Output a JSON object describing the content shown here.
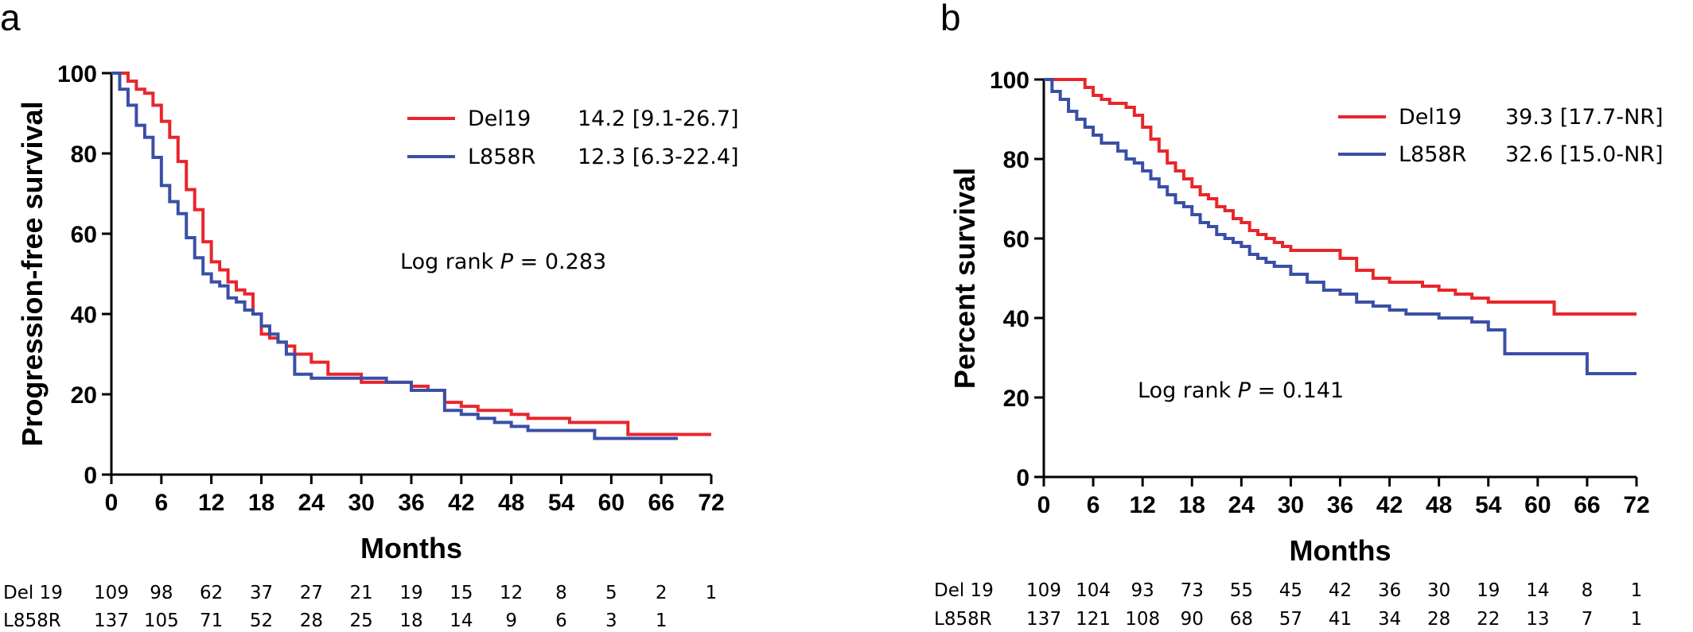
{
  "chart_data": [
    {
      "type": "line",
      "panel": "a",
      "ylabel": "Progression-free survival",
      "xlabel": "Months",
      "xlim": [
        0,
        72
      ],
      "ylim": [
        0,
        100
      ],
      "xticks": [
        "0",
        "6",
        "12",
        "18",
        "24",
        "30",
        "36",
        "42",
        "48",
        "54",
        "60",
        "66",
        "72"
      ],
      "yticks": [
        "0",
        "20",
        "40",
        "60",
        "80",
        "100"
      ],
      "grid": false,
      "legend_position": "top-right",
      "colors": {
        "Del19": "#e8262b",
        "L858R": "#3a4fa6"
      },
      "legend": [
        {
          "name": "Del19",
          "value": "14.2 [9.1-26.7]"
        },
        {
          "name": "L858R",
          "value": "12.3 [6.3-22.4]"
        }
      ],
      "annotation": {
        "prefix": "Log rank ",
        "italic": "P",
        "suffix": " = 0.283"
      },
      "series": [
        {
          "name": "Del19",
          "x": [
            0,
            1,
            2,
            3,
            4,
            5,
            6,
            7,
            8,
            9,
            10,
            11,
            12,
            13,
            14,
            15,
            16,
            17,
            18,
            19,
            20,
            21,
            22,
            24,
            26,
            30,
            33,
            36,
            38,
            40,
            42,
            44,
            46,
            48,
            50,
            55,
            58,
            60,
            62,
            66,
            72
          ],
          "y": [
            100,
            100,
            98,
            96,
            95,
            92,
            88,
            84,
            78,
            71,
            66,
            58,
            53,
            51,
            48,
            46,
            45,
            40,
            35,
            34,
            33,
            32,
            30,
            28,
            25,
            23,
            23,
            22,
            21,
            18,
            17,
            16,
            16,
            15,
            14,
            13,
            13,
            13,
            10,
            10,
            10
          ]
        },
        {
          "name": "L858R",
          "x": [
            0,
            1,
            2,
            3,
            4,
            5,
            6,
            7,
            8,
            9,
            10,
            11,
            12,
            13,
            14,
            15,
            16,
            17,
            18,
            19,
            20,
            21,
            22,
            24,
            26,
            30,
            33,
            36,
            38,
            40,
            42,
            44,
            46,
            48,
            50,
            55,
            58,
            60,
            62,
            66,
            68
          ],
          "y": [
            100,
            96,
            92,
            87,
            84,
            79,
            72,
            68,
            65,
            59,
            54,
            50,
            48,
            47,
            44,
            43,
            41,
            40,
            37,
            35,
            33,
            30,
            25,
            24,
            24,
            24,
            23,
            21,
            21,
            16,
            15,
            14,
            13,
            12,
            11,
            11,
            9,
            9,
            9,
            9,
            9
          ]
        }
      ],
      "risk_table": {
        "rows": [
          {
            "label": "Del 19",
            "values": [
              "109",
              "98",
              "62",
              "37",
              "27",
              "21",
              "19",
              "15",
              "12",
              "8",
              "5",
              "2",
              "1"
            ]
          },
          {
            "label": "L858R",
            "values": [
              "137",
              "105",
              "71",
              "52",
              "28",
              "25",
              "18",
              "14",
              "9",
              "6",
              "3",
              "1"
            ]
          }
        ]
      }
    },
    {
      "type": "line",
      "panel": "b",
      "ylabel": "Percent survival",
      "xlabel": "Months",
      "xlim": [
        0,
        72
      ],
      "ylim": [
        0,
        100
      ],
      "xticks": [
        "0",
        "6",
        "12",
        "18",
        "24",
        "30",
        "36",
        "42",
        "48",
        "54",
        "60",
        "66",
        "72"
      ],
      "yticks": [
        "0",
        "20",
        "40",
        "60",
        "80",
        "100"
      ],
      "grid": false,
      "legend_position": "top-right",
      "colors": {
        "Del19": "#e8262b",
        "L858R": "#3a4fa6"
      },
      "legend": [
        {
          "name": "Del19",
          "value": "39.3 [17.7-NR]"
        },
        {
          "name": "L858R",
          "value": "32.6 [15.0-NR]"
        }
      ],
      "annotation": {
        "prefix": "Log rank ",
        "italic": "P",
        "suffix": " = 0.141"
      },
      "series": [
        {
          "name": "Del19",
          "x": [
            0,
            2,
            4,
            5,
            6,
            7,
            8,
            9,
            10,
            11,
            12,
            13,
            14,
            15,
            16,
            17,
            18,
            19,
            20,
            21,
            22,
            23,
            24,
            25,
            26,
            27,
            28,
            29,
            30,
            33,
            36,
            38,
            40,
            42,
            44,
            46,
            48,
            50,
            52,
            54,
            58,
            62,
            66,
            72
          ],
          "y": [
            100,
            100,
            100,
            98,
            96,
            95,
            94,
            94,
            93,
            91,
            88,
            85,
            82,
            79,
            77,
            75,
            73,
            71,
            70,
            68,
            67,
            65,
            64,
            62,
            61,
            60,
            59,
            58,
            57,
            57,
            55,
            52,
            50,
            49,
            49,
            48,
            47,
            46,
            45,
            44,
            44,
            41,
            41,
            41
          ]
        },
        {
          "name": "L858R",
          "x": [
            0,
            1,
            2,
            3,
            4,
            5,
            6,
            7,
            8,
            9,
            10,
            11,
            12,
            13,
            14,
            15,
            16,
            17,
            18,
            19,
            20,
            21,
            22,
            23,
            24,
            25,
            26,
            27,
            28,
            30,
            32,
            34,
            36,
            38,
            40,
            42,
            44,
            46,
            48,
            52,
            54,
            56,
            60,
            62,
            66,
            72
          ],
          "y": [
            100,
            97,
            95,
            92,
            90,
            88,
            86,
            84,
            84,
            82,
            80,
            79,
            77,
            75,
            73,
            71,
            69,
            68,
            66,
            64,
            63,
            61,
            60,
            59,
            58,
            56,
            55,
            54,
            53,
            51,
            49,
            47,
            46,
            44,
            43,
            42,
            41,
            41,
            40,
            39,
            37,
            31,
            31,
            31,
            26,
            26
          ]
        }
      ],
      "risk_table": {
        "rows": [
          {
            "label": "Del 19",
            "values": [
              "109",
              "104",
              "93",
              "73",
              "55",
              "45",
              "42",
              "36",
              "30",
              "19",
              "14",
              "8",
              "1"
            ]
          },
          {
            "label": "L858R",
            "values": [
              "137",
              "121",
              "108",
              "90",
              "68",
              "57",
              "41",
              "34",
              "28",
              "22",
              "13",
              "7",
              "1"
            ]
          }
        ]
      }
    }
  ]
}
